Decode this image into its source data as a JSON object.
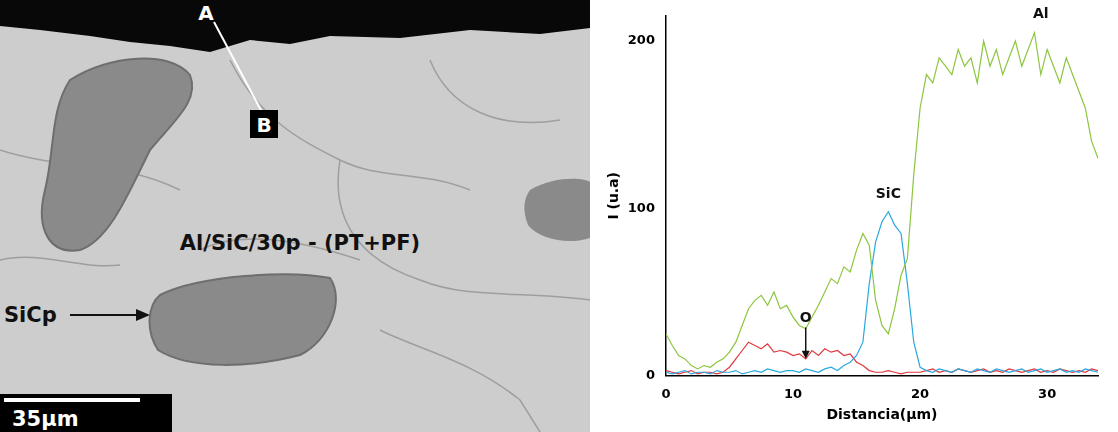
{
  "micrograph": {
    "labels": {
      "start": "A",
      "end": "B",
      "sample": "Al/SiC/30p - (PT+PF)",
      "particle": "SiCp",
      "scale_bar": "35μm"
    }
  },
  "chart_data": {
    "type": "line",
    "x_label": "Distancia(μm)",
    "y_label": "I (u.a)",
    "xlim": [
      0,
      34
    ],
    "xticks": [
      0,
      10,
      20,
      30
    ],
    "ylim": [
      0,
      215
    ],
    "yticks": [
      0,
      100,
      200
    ],
    "grid": false,
    "x": [
      0,
      0.5,
      1,
      1.5,
      2,
      2.5,
      3,
      3.5,
      4,
      4.5,
      5,
      5.5,
      6,
      6.5,
      7,
      7.5,
      8,
      8.5,
      9,
      9.5,
      10,
      10.5,
      11,
      11.5,
      12,
      12.5,
      13,
      13.5,
      14,
      14.5,
      15,
      15.5,
      16,
      16.5,
      17,
      17.5,
      18,
      18.5,
      19,
      19.5,
      20,
      20.5,
      21,
      21.5,
      22,
      22.5,
      23,
      23.5,
      24,
      24.5,
      25,
      25.5,
      26,
      26.5,
      27,
      27.5,
      28,
      28.5,
      29,
      29.5,
      30,
      30.5,
      31,
      31.5,
      32,
      32.5,
      33,
      33.5,
      34
    ],
    "series": [
      {
        "name": "Al",
        "color": "#8cc63f",
        "values": [
          25,
          18,
          12,
          10,
          6,
          4,
          6,
          5,
          8,
          10,
          14,
          20,
          30,
          40,
          45,
          48,
          42,
          50,
          40,
          42,
          35,
          30,
          28,
          35,
          42,
          50,
          58,
          55,
          65,
          62,
          75,
          85,
          78,
          45,
          30,
          25,
          40,
          60,
          70,
          120,
          160,
          180,
          175,
          190,
          185,
          180,
          195,
          185,
          190,
          175,
          200,
          185,
          195,
          180,
          190,
          200,
          185,
          195,
          205,
          180,
          195,
          185,
          175,
          190,
          180,
          170,
          160,
          140,
          130
        ]
      },
      {
        "name": "SiC",
        "color": "#29a9e0",
        "values": [
          2,
          1,
          2,
          3,
          1,
          2,
          2,
          1,
          3,
          2,
          2,
          3,
          1,
          2,
          3,
          2,
          4,
          3,
          2,
          3,
          3,
          2,
          4,
          3,
          2,
          4,
          5,
          3,
          6,
          8,
          12,
          20,
          55,
          80,
          92,
          98,
          90,
          85,
          55,
          20,
          5,
          3,
          2,
          4,
          3,
          2,
          4,
          3,
          2,
          4,
          3,
          2,
          4,
          3,
          2,
          3,
          4,
          2,
          3,
          4,
          2,
          3,
          4,
          2,
          3,
          2,
          4,
          3,
          2
        ]
      },
      {
        "name": "O",
        "color": "#e0383e",
        "values": [
          3,
          2,
          1,
          2,
          3,
          1,
          2,
          2,
          1,
          2,
          5,
          10,
          15,
          20,
          18,
          16,
          19,
          14,
          15,
          14,
          12,
          13,
          10,
          15,
          12,
          16,
          14,
          15,
          12,
          13,
          8,
          6,
          3,
          2,
          2,
          3,
          2,
          1,
          2,
          2,
          2,
          3,
          4,
          2,
          3,
          2,
          4,
          3,
          2,
          3,
          4,
          2,
          3,
          2,
          4,
          3,
          2,
          3,
          4,
          2,
          3,
          2,
          4,
          3,
          2,
          3,
          2,
          4,
          3
        ]
      }
    ],
    "annotations": [
      {
        "text": "Al",
        "x": 29.5,
        "y": 212
      },
      {
        "text": "SiC",
        "x": 17.5,
        "y": 104
      },
      {
        "text": "O",
        "x": 11,
        "y": 30,
        "arrow_to": [
          11,
          10
        ]
      }
    ]
  }
}
